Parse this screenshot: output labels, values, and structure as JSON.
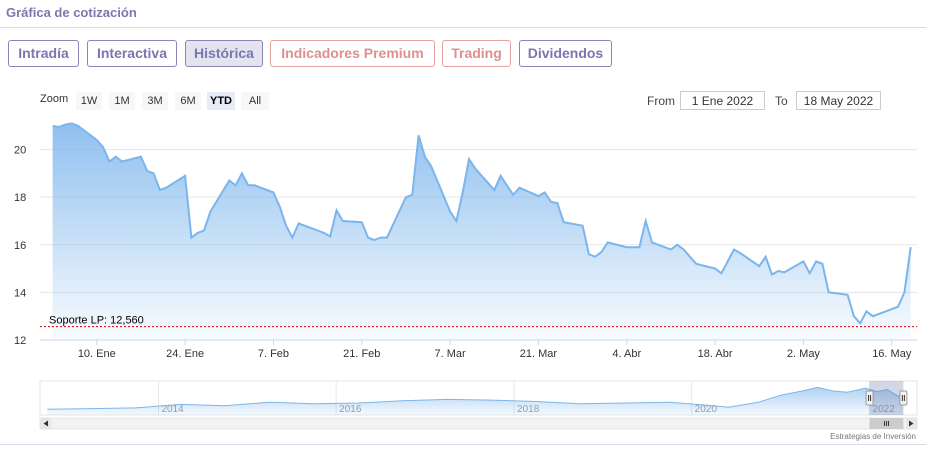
{
  "header": {
    "title": "Gráfica de cotización"
  },
  "tabs": [
    {
      "label": "Intradía",
      "style": "purple"
    },
    {
      "label": "Interactiva",
      "style": "purple"
    },
    {
      "label": "Histórica",
      "style": "active"
    },
    {
      "label": "Indicadores Premium",
      "style": "red"
    },
    {
      "label": "Trading",
      "style": "red"
    },
    {
      "label": "Dividendos",
      "style": "purple"
    }
  ],
  "range_selector": {
    "zoom_label": "Zoom",
    "buttons": [
      "1W",
      "1M",
      "3M",
      "6M",
      "YTD",
      "All"
    ],
    "selected": "YTD",
    "from_label": "From",
    "from_value": "1 Ene 2022",
    "to_label": "To",
    "to_value": "18 May 2022"
  },
  "chart_data": {
    "type": "area",
    "series": [
      {
        "values": [
          [
            "2022-01-03",
            21.0
          ],
          [
            "2022-01-04",
            20.95
          ],
          [
            "2022-01-05",
            21.05
          ],
          [
            "2022-01-06",
            21.1
          ],
          [
            "2022-01-07",
            21.0
          ],
          [
            "2022-01-10",
            20.4
          ],
          [
            "2022-01-11",
            20.1
          ],
          [
            "2022-01-12",
            19.5
          ],
          [
            "2022-01-13",
            19.7
          ],
          [
            "2022-01-14",
            19.5
          ],
          [
            "2022-01-17",
            19.7
          ],
          [
            "2022-01-18",
            19.1
          ],
          [
            "2022-01-19",
            19.0
          ],
          [
            "2022-01-20",
            18.3
          ],
          [
            "2022-01-21",
            18.4
          ],
          [
            "2022-01-24",
            18.9
          ],
          [
            "2022-01-25",
            16.3
          ],
          [
            "2022-01-26",
            16.5
          ],
          [
            "2022-01-27",
            16.6
          ],
          [
            "2022-01-28",
            17.4
          ],
          [
            "2022-01-31",
            18.7
          ],
          [
            "2022-02-01",
            18.5
          ],
          [
            "2022-02-02",
            19.0
          ],
          [
            "2022-02-03",
            18.5
          ],
          [
            "2022-02-04",
            18.5
          ],
          [
            "2022-02-07",
            18.2
          ],
          [
            "2022-02-08",
            17.6
          ],
          [
            "2022-02-09",
            16.8
          ],
          [
            "2022-02-10",
            16.3
          ],
          [
            "2022-02-11",
            16.9
          ],
          [
            "2022-02-14",
            16.6
          ],
          [
            "2022-02-15",
            16.5
          ],
          [
            "2022-02-16",
            16.35
          ],
          [
            "2022-02-17",
            17.45
          ],
          [
            "2022-02-18",
            17.0
          ],
          [
            "2022-02-21",
            16.95
          ],
          [
            "2022-02-22",
            16.3
          ],
          [
            "2022-02-23",
            16.2
          ],
          [
            "2022-02-24",
            16.3
          ],
          [
            "2022-02-25",
            16.3
          ],
          [
            "2022-02-28",
            18.0
          ],
          [
            "2022-03-01",
            18.1
          ],
          [
            "2022-03-02",
            20.6
          ],
          [
            "2022-03-03",
            19.7
          ],
          [
            "2022-03-04",
            19.3
          ],
          [
            "2022-03-07",
            17.4
          ],
          [
            "2022-03-08",
            17.0
          ],
          [
            "2022-03-09",
            18.2
          ],
          [
            "2022-03-10",
            19.6
          ],
          [
            "2022-03-11",
            19.2
          ],
          [
            "2022-03-14",
            18.3
          ],
          [
            "2022-03-15",
            18.9
          ],
          [
            "2022-03-16",
            18.5
          ],
          [
            "2022-03-17",
            18.1
          ],
          [
            "2022-03-18",
            18.4
          ],
          [
            "2022-03-21",
            18.05
          ],
          [
            "2022-03-22",
            18.2
          ],
          [
            "2022-03-23",
            17.8
          ],
          [
            "2022-03-24",
            17.75
          ],
          [
            "2022-03-25",
            16.95
          ],
          [
            "2022-03-28",
            16.8
          ],
          [
            "2022-03-29",
            15.6
          ],
          [
            "2022-03-30",
            15.5
          ],
          [
            "2022-03-31",
            15.7
          ],
          [
            "2022-04-01",
            16.1
          ],
          [
            "2022-04-04",
            15.9
          ],
          [
            "2022-04-05",
            15.9
          ],
          [
            "2022-04-06",
            15.9
          ],
          [
            "2022-04-07",
            17.0
          ],
          [
            "2022-04-08",
            16.1
          ],
          [
            "2022-04-11",
            15.8
          ],
          [
            "2022-04-12",
            16.0
          ],
          [
            "2022-04-13",
            15.8
          ],
          [
            "2022-04-14",
            15.5
          ],
          [
            "2022-04-15",
            15.2
          ],
          [
            "2022-04-18",
            15.0
          ],
          [
            "2022-04-19",
            14.8
          ],
          [
            "2022-04-20",
            15.3
          ],
          [
            "2022-04-21",
            15.8
          ],
          [
            "2022-04-22",
            15.65
          ],
          [
            "2022-04-25",
            15.1
          ],
          [
            "2022-04-26",
            15.5
          ],
          [
            "2022-04-27",
            14.75
          ],
          [
            "2022-04-28",
            14.9
          ],
          [
            "2022-04-29",
            14.85
          ],
          [
            "2022-05-02",
            15.3
          ],
          [
            "2022-05-03",
            14.8
          ],
          [
            "2022-05-04",
            15.3
          ],
          [
            "2022-05-05",
            15.2
          ],
          [
            "2022-05-06",
            14.0
          ],
          [
            "2022-05-09",
            13.9
          ],
          [
            "2022-05-10",
            13.0
          ],
          [
            "2022-05-11",
            12.7
          ],
          [
            "2022-05-12",
            13.2
          ],
          [
            "2022-05-13",
            13.0
          ],
          [
            "2022-05-16",
            13.3
          ],
          [
            "2022-05-17",
            13.4
          ],
          [
            "2022-05-18",
            14.0
          ],
          [
            "2022-05-19",
            15.9
          ]
        ]
      }
    ],
    "x_range": [
      "2022-01-01",
      "2022-05-20"
    ],
    "ylim": [
      12,
      21.2
    ],
    "y_ticks": [
      12,
      14,
      16,
      18,
      20
    ],
    "x_ticks": [
      {
        "date": "2022-01-10",
        "label": "10. Ene"
      },
      {
        "date": "2022-01-24",
        "label": "24. Ene"
      },
      {
        "date": "2022-02-07",
        "label": "7. Feb"
      },
      {
        "date": "2022-02-21",
        "label": "21. Feb"
      },
      {
        "date": "2022-03-07",
        "label": "7. Mar"
      },
      {
        "date": "2022-03-21",
        "label": "21. Mar"
      },
      {
        "date": "2022-04-04",
        "label": "4. Abr"
      },
      {
        "date": "2022-04-18",
        "label": "18. Abr"
      },
      {
        "date": "2022-05-02",
        "label": "2. May"
      },
      {
        "date": "2022-05-16",
        "label": "16. May"
      }
    ],
    "plot_lines": [
      {
        "value": 12.56,
        "label": "Soporte LP: 12,560",
        "color": "#cc0000"
      }
    ],
    "grid": true,
    "navigator": {
      "x_range": [
        "2012-09-01",
        "2022-07-15"
      ],
      "ylim": [
        0,
        24
      ],
      "labels": [
        {
          "date": "2014-01-01",
          "label": "2014"
        },
        {
          "date": "2016-01-01",
          "label": "2016"
        },
        {
          "date": "2018-01-01",
          "label": "2018"
        },
        {
          "date": "2020-01-01",
          "label": "2020"
        },
        {
          "date": "2022-01-01",
          "label": "2022"
        }
      ],
      "values": [
        [
          "2012-10-01",
          4.0
        ],
        [
          "2013-04-01",
          4.5
        ],
        [
          "2013-10-01",
          5.0
        ],
        [
          "2014-04-01",
          7.5
        ],
        [
          "2014-10-01",
          6.5
        ],
        [
          "2015-04-01",
          9.0
        ],
        [
          "2015-10-01",
          8.0
        ],
        [
          "2016-04-01",
          8.5
        ],
        [
          "2016-10-01",
          10.0
        ],
        [
          "2017-04-01",
          11.0
        ],
        [
          "2017-10-01",
          10.5
        ],
        [
          "2018-04-01",
          9.5
        ],
        [
          "2018-10-01",
          8.0
        ],
        [
          "2019-04-01",
          8.5
        ],
        [
          "2019-10-01",
          9.0
        ],
        [
          "2020-03-01",
          7.0
        ],
        [
          "2020-06-01",
          5.5
        ],
        [
          "2020-10-01",
          9.0
        ],
        [
          "2021-01-01",
          14.0
        ],
        [
          "2021-04-01",
          17.0
        ],
        [
          "2021-06-01",
          19.5
        ],
        [
          "2021-08-01",
          17.0
        ],
        [
          "2021-10-01",
          16.0
        ],
        [
          "2021-12-15",
          19.0
        ],
        [
          "2022-02-01",
          16.5
        ],
        [
          "2022-03-15",
          18.0
        ],
        [
          "2022-05-01",
          13.0
        ],
        [
          "2022-05-19",
          15.9
        ]
      ]
    }
  },
  "colors": {
    "line": "#7cb5ec",
    "accent": "#7b78b0",
    "support": "#cc0000"
  },
  "credits": "Estrategias de Inversión",
  "icons": {
    "scroll_left": "arrow-left-icon",
    "scroll_right": "arrow-right-icon",
    "scroll_grip": "grip-icon"
  }
}
